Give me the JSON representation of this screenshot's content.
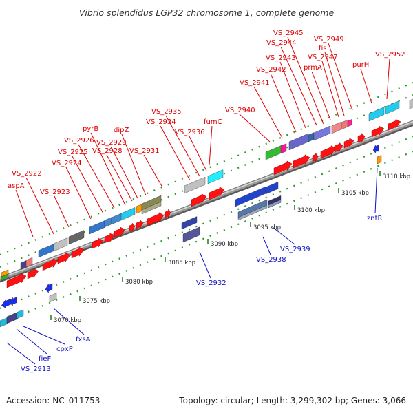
{
  "header": {
    "title": "Vibrio splendidus LGP32 chromosome 1, complete genome"
  },
  "footer": {
    "accession": "Accession: NC_011753",
    "topology": "Topology: circular; Length: 3,299,302 bp; Genes: 3,066"
  },
  "colors": {
    "forward_label": "#e00000",
    "reverse_label": "#1010c0",
    "backbone": "#9a9a9a",
    "dots": "#2e9a2e"
  },
  "scale_ticks": [
    "3070 kbp",
    "3075 kbp",
    "3080 kbp",
    "3085 kbp",
    "3090 kbp",
    "3095 kbp",
    "3100 kbp",
    "3105 kbp",
    "3110 kbp"
  ],
  "forward_labels": [
    "aspA",
    "VS_2922",
    "VS_2923",
    "VS_2924",
    "VS_2925",
    "VS_2926",
    "pyrB",
    "VS_2928",
    "VS_2929",
    "dipZ",
    "VS_2931",
    "VS_2934",
    "VS_2935",
    "VS_2936",
    "fumC",
    "VS_2940",
    "VS_2941",
    "VS_2942",
    "VS_2943",
    "VS_2944",
    "VS_2945",
    "prmA",
    "VS_2947",
    "fis",
    "VS_2949",
    "purH",
    "VS_2952"
  ],
  "reverse_labels": [
    "VS_2913",
    "fieF",
    "cpxP",
    "fxsA",
    "VS_2932",
    "VS_2938",
    "VS_2939",
    "zntR"
  ]
}
